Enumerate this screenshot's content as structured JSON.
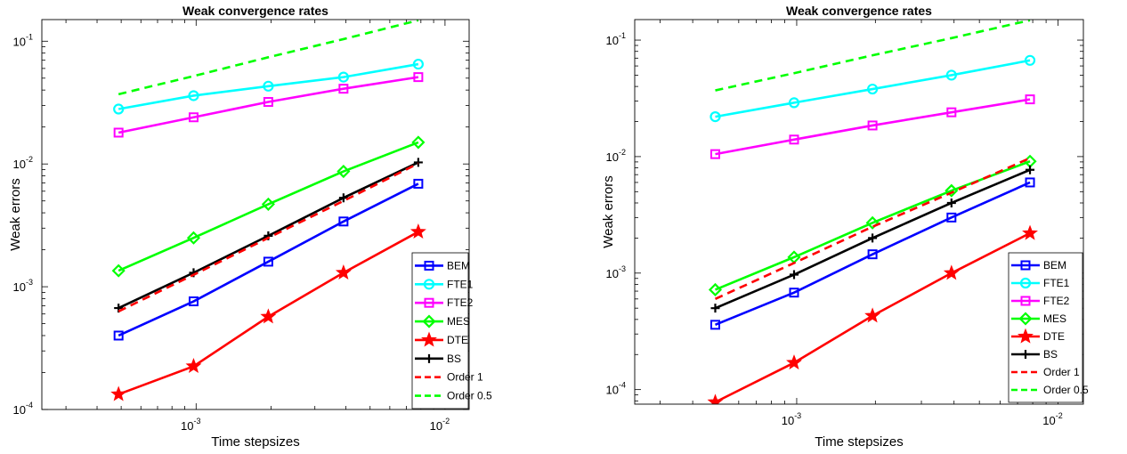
{
  "chart_data": [
    {
      "type": "line",
      "title": "Weak convergence rates",
      "xlabel": "Time stepsizes",
      "ylabel": "Weak errors",
      "xscale": "log",
      "yscale": "log",
      "xlim": [
        0.00024,
        0.0125
      ],
      "ylim": [
        0.0001,
        0.15
      ],
      "grid": false,
      "legend_position": "bottom-right",
      "x_ticks": [
        {
          "base": "10",
          "exp": "-3"
        },
        {
          "base": "10",
          "exp": "-2"
        }
      ],
      "y_ticks": [
        {
          "base": "10",
          "exp": "-4"
        },
        {
          "base": "10",
          "exp": "-3"
        },
        {
          "base": "10",
          "exp": "-2"
        },
        {
          "base": "10",
          "exp": "-1"
        }
      ],
      "x": [
        0.000488,
        0.000977,
        0.00195,
        0.00391,
        0.00781
      ],
      "series": [
        {
          "name": "BEM",
          "color": "#0000ff",
          "marker": "square",
          "dash": "solid",
          "values": [
            0.0004,
            0.00076,
            0.0016,
            0.0034,
            0.0069
          ]
        },
        {
          "name": "FTE1",
          "color": "#00ffff",
          "marker": "circle",
          "dash": "solid",
          "values": [
            0.028,
            0.036,
            0.043,
            0.051,
            0.065
          ]
        },
        {
          "name": "FTE2",
          "color": "#ff00ff",
          "marker": "square",
          "dash": "solid",
          "values": [
            0.018,
            0.024,
            0.032,
            0.041,
            0.051
          ]
        },
        {
          "name": "MES",
          "color": "#00ff00",
          "marker": "diamond",
          "dash": "solid",
          "values": [
            0.00135,
            0.0025,
            0.0047,
            0.0087,
            0.015
          ]
        },
        {
          "name": "DTE",
          "color": "#ff0000",
          "marker": "star",
          "dash": "solid",
          "values": [
            0.000133,
            0.000225,
            0.00057,
            0.0013,
            0.0028
          ]
        },
        {
          "name": "BS",
          "color": "#000000",
          "marker": "plus",
          "dash": "solid",
          "values": [
            0.00067,
            0.0013,
            0.0026,
            0.0053,
            0.0103
          ]
        },
        {
          "name": "Order 1",
          "color": "#ff0000",
          "marker": "none",
          "dash": "dashed",
          "values": [
            0.00063,
            0.00125,
            0.0025,
            0.005,
            0.0101
          ]
        },
        {
          "name": "Order 0.5",
          "color": "#00ff00",
          "marker": "none",
          "dash": "dashed",
          "values": [
            0.037,
            0.052,
            0.074,
            0.104,
            0.148
          ]
        }
      ]
    },
    {
      "type": "line",
      "title": "Weak convergence rates",
      "xlabel": "Time stepsizes",
      "ylabel": "Weak errors",
      "xscale": "log",
      "yscale": "log",
      "xlim": [
        0.00024,
        0.0125
      ],
      "ylim": [
        7.5e-05,
        0.15
      ],
      "grid": false,
      "legend_position": "bottom-right",
      "x_ticks": [
        {
          "base": "10",
          "exp": "-3"
        },
        {
          "base": "10",
          "exp": "-2"
        }
      ],
      "y_ticks": [
        {
          "base": "10",
          "exp": "-4"
        },
        {
          "base": "10",
          "exp": "-3"
        },
        {
          "base": "10",
          "exp": "-2"
        },
        {
          "base": "10",
          "exp": "-1"
        }
      ],
      "x": [
        0.000488,
        0.000977,
        0.00195,
        0.00391,
        0.00781
      ],
      "series": [
        {
          "name": "BEM",
          "color": "#0000ff",
          "marker": "square",
          "dash": "solid",
          "values": [
            0.00036,
            0.00068,
            0.00145,
            0.003,
            0.006
          ]
        },
        {
          "name": "FTE1",
          "color": "#00ffff",
          "marker": "circle",
          "dash": "solid",
          "values": [
            0.022,
            0.029,
            0.038,
            0.05,
            0.067
          ]
        },
        {
          "name": "FTE2",
          "color": "#ff00ff",
          "marker": "square",
          "dash": "solid",
          "values": [
            0.0105,
            0.014,
            0.0185,
            0.024,
            0.031
          ]
        },
        {
          "name": "MES",
          "color": "#00ff00",
          "marker": "diamond",
          "dash": "solid",
          "values": [
            0.00072,
            0.00137,
            0.0027,
            0.0051,
            0.0091
          ]
        },
        {
          "name": "DTE",
          "color": "#ff0000",
          "marker": "star",
          "dash": "solid",
          "values": [
            7.8e-05,
            0.00017,
            0.00043,
            0.001,
            0.0022
          ]
        },
        {
          "name": "BS",
          "color": "#000000",
          "marker": "plus",
          "dash": "solid",
          "values": [
            0.0005,
            0.00097,
            0.002,
            0.004,
            0.0077
          ]
        },
        {
          "name": "Order 1",
          "color": "#ff0000",
          "marker": "none",
          "dash": "dashed",
          "values": [
            0.0006,
            0.00122,
            0.0025,
            0.0049,
            0.0097
          ]
        },
        {
          "name": "Order 0.5",
          "color": "#00ff00",
          "marker": "none",
          "dash": "dashed",
          "values": [
            0.037,
            0.052,
            0.074,
            0.104,
            0.148
          ]
        }
      ]
    }
  ]
}
